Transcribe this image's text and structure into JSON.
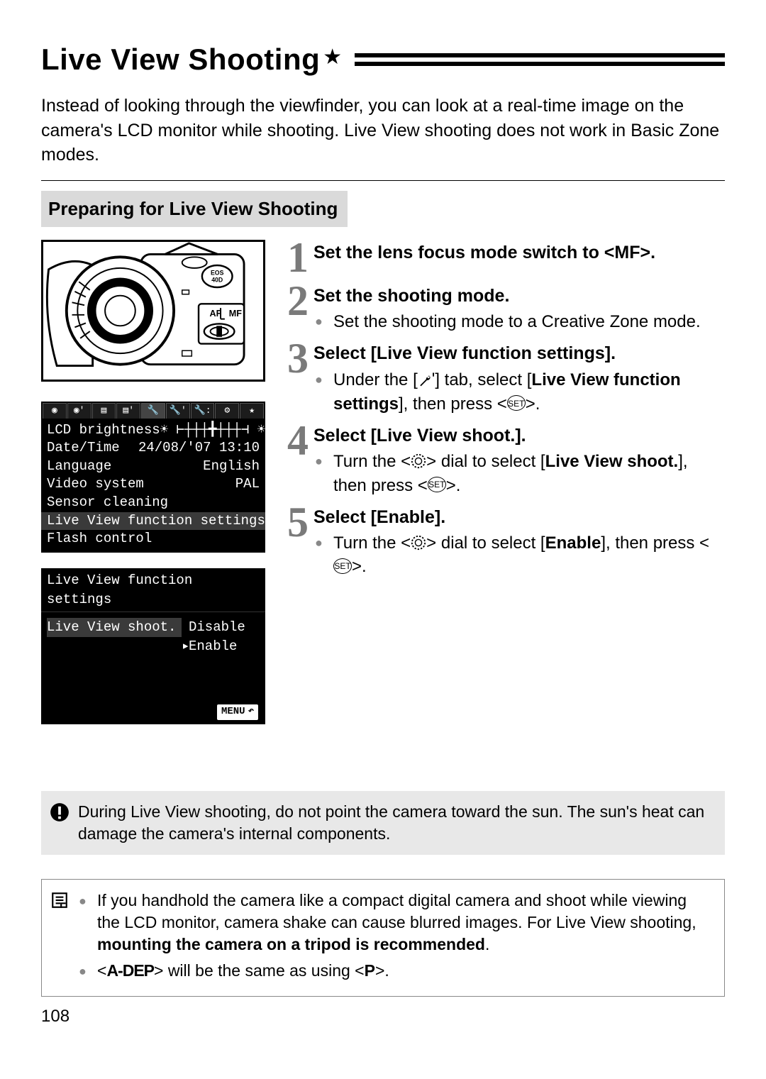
{
  "title": "Live View Shooting",
  "intro": "Instead of looking through the viewfinder, you can look at a real-time image on the camera's LCD monitor while shooting. Live View shooting does not work in Basic Zone modes.",
  "section_head": "Preparing for Live View Shooting",
  "camera_illus": {
    "model_badge": "EOS\n40D",
    "af_label": "AF",
    "mf_label": "MF"
  },
  "lcd_menu": {
    "rows": [
      {
        "label": "LCD brightness",
        "value": ""
      },
      {
        "label": "Date/Time",
        "value": "24/08/'07 13:10"
      },
      {
        "label": "Language",
        "value": "English"
      },
      {
        "label": "Video system",
        "value": "PAL"
      },
      {
        "label": "Sensor cleaning",
        "value": ""
      },
      {
        "label": "Live View function settings",
        "value": "",
        "highlight": true
      },
      {
        "label": "Flash control",
        "value": ""
      }
    ]
  },
  "lcd_sub": {
    "title": "Live View function settings",
    "rows": [
      {
        "label": "Live View shoot.",
        "value": "Disable",
        "highlight": true
      },
      {
        "label": "",
        "value": "Enable",
        "caret": true
      }
    ],
    "menu_label": "MENU"
  },
  "steps": [
    {
      "num": "1",
      "title_html": "Set the lens focus mode switch to &lt;MF&gt;."
    },
    {
      "num": "2",
      "title_html": "Set the shooting mode.",
      "bullets": [
        {
          "html": "Set the shooting mode to a Creative Zone mode."
        }
      ]
    },
    {
      "num": "3",
      "title_html": "Select [Live View function settings].",
      "bullets": [
        {
          "html": "Under the [{{WRENCH}}] tab, select [<b>Live View function settings</b>], then press &lt;{{SET}}&gt;."
        }
      ]
    },
    {
      "num": "4",
      "title_html": "Select [Live View shoot.].",
      "bullets": [
        {
          "html": "Turn the &lt;{{DIAL}}&gt; dial to select [<b>Live View shoot.</b>], then press &lt;{{SET}}&gt;."
        }
      ]
    },
    {
      "num": "5",
      "title_html": "Select [Enable].",
      "bullets": [
        {
          "html": "Turn the &lt;{{DIAL}}&gt; dial to select [<b>Enable</b>], then press &lt;{{SET}}&gt;."
        }
      ]
    }
  ],
  "warning_html": "During Live View shooting, do not point the camera toward the sun. The sun's heat can damage the camera's internal components.",
  "tips": [
    {
      "html": "If you handhold the camera like a compact digital camera and shoot while viewing the LCD monitor, camera shake can cause blurred images. For Live View shooting, <b>mounting the camera on a tripod is recommended</b>."
    },
    {
      "html": "&lt;<span style='font-family:Arial;font-weight:bold;letter-spacing:-1px'>A-DEP</span>&gt; will be the same as using &lt;<b>P</b>&gt;."
    }
  ],
  "page_number": "108",
  "colors": {
    "step_num": "#7a7a7a",
    "note_bg": "#e8e8e8",
    "section_bg": "#dadada"
  }
}
